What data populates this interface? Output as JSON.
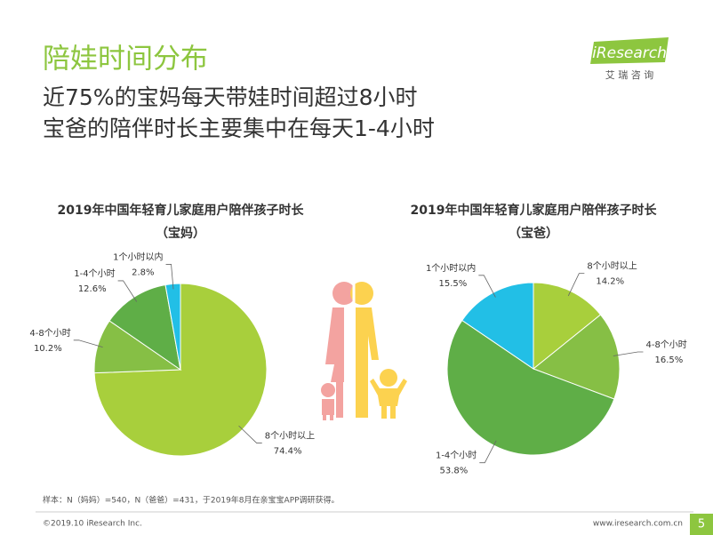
{
  "header": {
    "title": "陪娃时间分布",
    "subtitle_lines": [
      "近75%的宝妈每天带娃时间超过8小时",
      "宝爸的陪伴时长主要集中在每天1-4小时"
    ]
  },
  "logo": {
    "brand": "iResearch",
    "tagline": "艾 瑞 咨 询"
  },
  "chart_data": [
    {
      "type": "pie",
      "title": "2019年中国年轻育儿家庭用户陪伴孩子时长",
      "subtitle": "（宝妈）",
      "categories": [
        "8个小时以上",
        "4-8个小时",
        "1-4个小时",
        "1个小时以内"
      ],
      "values": [
        74.4,
        10.2,
        12.6,
        2.8
      ],
      "value_labels": [
        "74.4%",
        "10.2%",
        "12.6%",
        "2.8%"
      ],
      "colors": [
        "#a8cf3c",
        "#86bf45",
        "#5fae47",
        "#22bfe6"
      ]
    },
    {
      "type": "pie",
      "title": "2019年中国年轻育儿家庭用户陪伴孩子时长",
      "subtitle": "（宝爸）",
      "categories": [
        "8个小时以上",
        "4-8个小时",
        "1-4个小时",
        "1个小时以内"
      ],
      "values": [
        14.2,
        16.5,
        53.8,
        15.5
      ],
      "value_labels": [
        "14.2%",
        "16.5%",
        "53.8%",
        "15.5%"
      ],
      "colors": [
        "#a8cf3c",
        "#86bf45",
        "#5fae47",
        "#22bfe6"
      ]
    }
  ],
  "note": "样本：N（妈妈）=540，N（爸爸）=431，于2019年8月在亲宝宝APP调研获得。",
  "footer": {
    "copyright": "©2019.10 iResearch Inc.",
    "url": "www.iresearch.com.cn",
    "page": "5"
  }
}
